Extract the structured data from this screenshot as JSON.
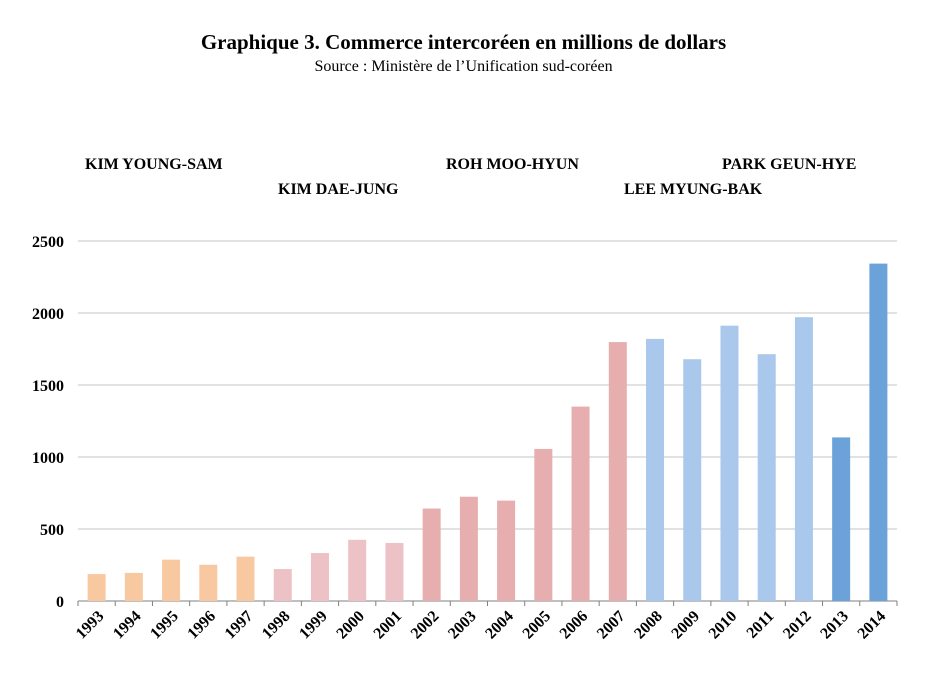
{
  "chart_data": {
    "type": "bar",
    "title": "Graphique 3. Commerce intercoréen en millions de dollars",
    "subtitle": "Source : Ministère de l’Unification sud-coréen",
    "categories": [
      "1993",
      "1994",
      "1995",
      "1996",
      "1997",
      "1998",
      "1999",
      "2000",
      "2001",
      "2002",
      "2003",
      "2004",
      "2005",
      "2006",
      "2007",
      "2008",
      "2009",
      "2010",
      "2011",
      "2012",
      "2013",
      "2014"
    ],
    "values": [
      187,
      195,
      287,
      252,
      308,
      222,
      333,
      425,
      403,
      642,
      724,
      697,
      1056,
      1350,
      1798,
      1820,
      1679,
      1912,
      1714,
      1971,
      1136,
      2343
    ],
    "bar_colors": [
      "#f8c9a0",
      "#f8c9a0",
      "#f8c9a0",
      "#f8c9a0",
      "#f8c9a0",
      "#edc2c6",
      "#edc2c6",
      "#edc2c6",
      "#edc2c6",
      "#e6aeae",
      "#e6aeae",
      "#e6aeae",
      "#e6aeae",
      "#e6aeae",
      "#e6aeae",
      "#a9c8eb",
      "#a9c8eb",
      "#a9c8eb",
      "#a9c8eb",
      "#a9c8eb",
      "#6aa2d9",
      "#6aa2d9"
    ],
    "ylim": [
      0,
      2500
    ],
    "yticks": [
      "0",
      "500",
      "1000",
      "1500",
      "2000",
      "2500"
    ],
    "grid": true,
    "periods": [
      {
        "label": "KIM YOUNG-SAM"
      },
      {
        "label": "KIM DAE-JUNG"
      },
      {
        "label": "ROH MOO-HYUN"
      },
      {
        "label": "LEE MYUNG-BAK"
      },
      {
        "label": "PARK GEUN-HYE"
      }
    ]
  }
}
